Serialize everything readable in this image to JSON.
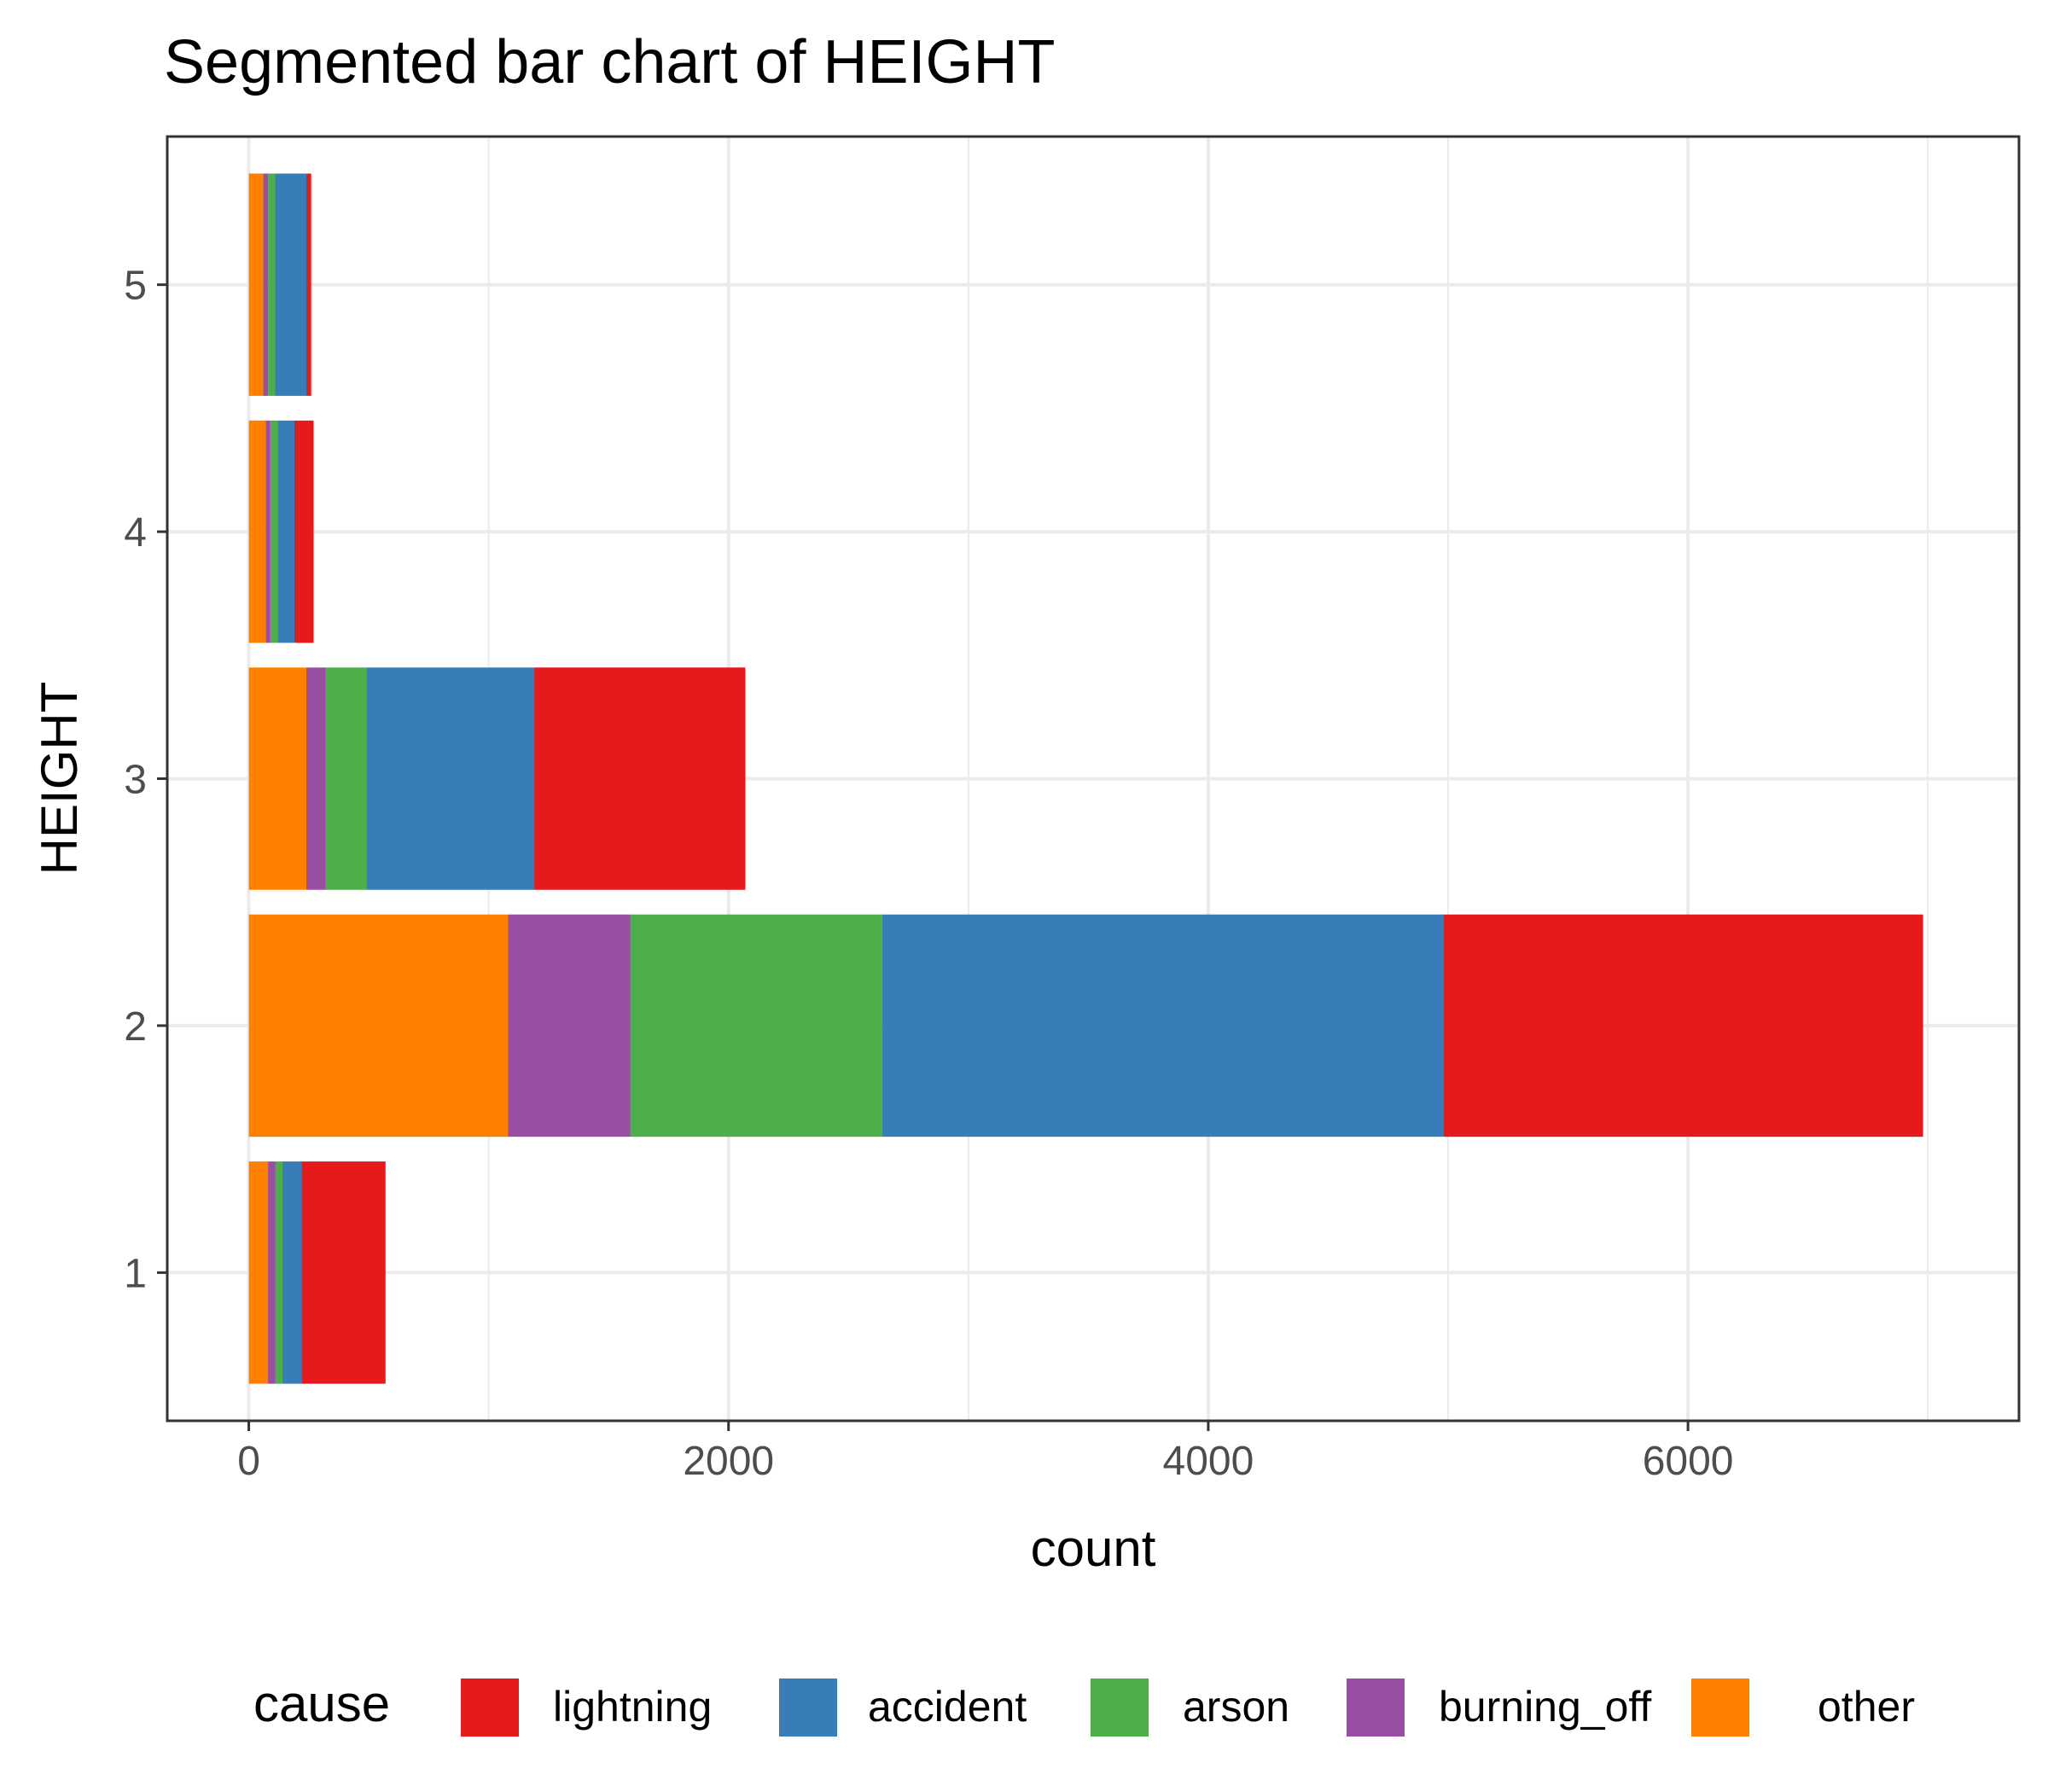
{
  "chart_data": {
    "type": "bar",
    "orientation": "horizontal",
    "stacked": true,
    "title": "Segmented bar chart of HEIGHT",
    "xlabel": "count",
    "ylabel": "HEIGHT",
    "categories": [
      "1",
      "2",
      "3",
      "4",
      "5"
    ],
    "x_ticks": [
      "0",
      "2000",
      "4000",
      "6000"
    ],
    "xlim": [
      -340,
      7380
    ],
    "grid": true,
    "legend": {
      "title": "cause",
      "position": "bottom"
    },
    "series": [
      {
        "name": "other",
        "color": "#FF7F00",
        "values": [
          80,
          1080,
          240,
          70,
          60
        ]
      },
      {
        "name": "burning_off",
        "color": "#984EA3",
        "values": [
          30,
          510,
          80,
          20,
          20
        ]
      },
      {
        "name": "arson",
        "color": "#4DAF4A",
        "values": [
          30,
          1050,
          170,
          30,
          30
        ]
      },
      {
        "name": "accident",
        "color": "#377EB8",
        "values": [
          80,
          2340,
          700,
          70,
          130
        ]
      },
      {
        "name": "lightning",
        "color": "#E41A1C",
        "values": [
          350,
          2000,
          880,
          80,
          20
        ]
      }
    ]
  }
}
